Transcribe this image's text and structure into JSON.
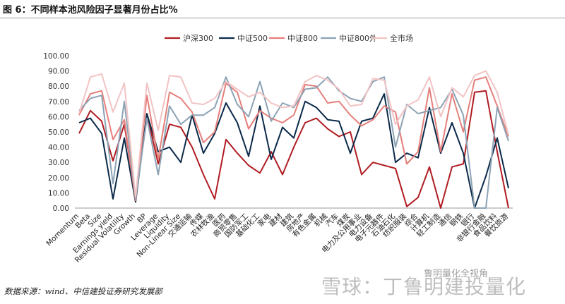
{
  "figure": {
    "title": "图 6：不同样本池风险因子显著月份占比%",
    "source": "数据来源：wind、中信建投证券研究发展部",
    "watermark": "雪球：丁鲁明建投量化",
    "watermark_sub": "鲁明量化全视角"
  },
  "colors": {
    "hs300": "#b01c22",
    "zz500": "#0b2a4a",
    "zz800": "#e57f7b",
    "zz800ex": "#8ca3b5",
    "all": "#f2c3c4"
  },
  "chart_data": {
    "type": "line",
    "ylim": [
      0,
      100
    ],
    "yticks": [
      "0.00",
      "10.00",
      "20.00",
      "30.00",
      "40.00",
      "50.00",
      "60.00",
      "70.00",
      "80.00",
      "90.00",
      "100.00"
    ],
    "grid": false,
    "legend_position": "top",
    "categories": [
      "Momentum",
      "Beta",
      "Size",
      "Earnings yield",
      "Residual Volatility",
      "Growth",
      "BP",
      "Leverage",
      "Liquidity",
      "Non-Linear Size",
      "交通运输",
      "传媒",
      "农林牧渔",
      "医药",
      "商贸零售",
      "国防军工",
      "基础化工",
      "家电",
      "建材",
      "建筑",
      "房地产",
      "有色金属",
      "机械",
      "汽车",
      "煤炭",
      "电力及公用事业",
      "电力设备",
      "电子元器件",
      "石油石化",
      "纺织服装",
      "综合",
      "计算机",
      "轻工制造",
      "通信",
      "钢铁",
      "银行",
      "非银行金融",
      "食品饮料",
      "餐饮旅游"
    ],
    "series": [
      {
        "name": "沪深300",
        "key": "hs300",
        "values": [
          49,
          64,
          57,
          31,
          55,
          7,
          62,
          29,
          55,
          53,
          40,
          22,
          6,
          45,
          36,
          28,
          23,
          37,
          22,
          40,
          56,
          59,
          52,
          47,
          50,
          22,
          30,
          28,
          26,
          1,
          7,
          27,
          0,
          27,
          29,
          76,
          77,
          37,
          0
        ]
      },
      {
        "name": "中证500",
        "key": "zz500",
        "values": [
          56,
          59,
          49,
          6,
          46,
          4,
          62,
          37,
          40,
          30,
          61,
          36,
          49,
          69,
          56,
          34,
          67,
          32,
          53,
          46,
          70,
          66,
          58,
          57,
          36,
          57,
          59,
          75,
          30,
          36,
          33,
          66,
          36,
          56,
          36,
          0,
          21,
          46,
          13
        ]
      },
      {
        "name": "中证800",
        "key": "zz800",
        "values": [
          61,
          75,
          77,
          45,
          58,
          5,
          74,
          32,
          76,
          72,
          63,
          43,
          50,
          82,
          76,
          52,
          64,
          59,
          56,
          61,
          81,
          80,
          69,
          70,
          61,
          54,
          58,
          67,
          63,
          29,
          37,
          79,
          37,
          75,
          50,
          84,
          86,
          67,
          47
        ]
      },
      {
        "name": "中证800外",
        "key": "zz800ex",
        "values": [
          64,
          72,
          74,
          16,
          70,
          6,
          59,
          22,
          67,
          55,
          61,
          61,
          66,
          86,
          68,
          60,
          83,
          57,
          69,
          66,
          78,
          79,
          86,
          77,
          72,
          70,
          83,
          86,
          40,
          68,
          62,
          64,
          66,
          78,
          61,
          0,
          0,
          66,
          44
        ]
      },
      {
        "name": "全市场",
        "key": "all",
        "values": [
          62,
          86,
          88,
          63,
          82,
          7,
          82,
          51,
          87,
          86,
          69,
          68,
          72,
          83,
          78,
          73,
          76,
          69,
          66,
          67,
          83,
          87,
          84,
          78,
          67,
          68,
          85,
          84,
          55,
          67,
          71,
          86,
          60,
          79,
          73,
          87,
          90,
          76,
          48
        ]
      }
    ]
  }
}
